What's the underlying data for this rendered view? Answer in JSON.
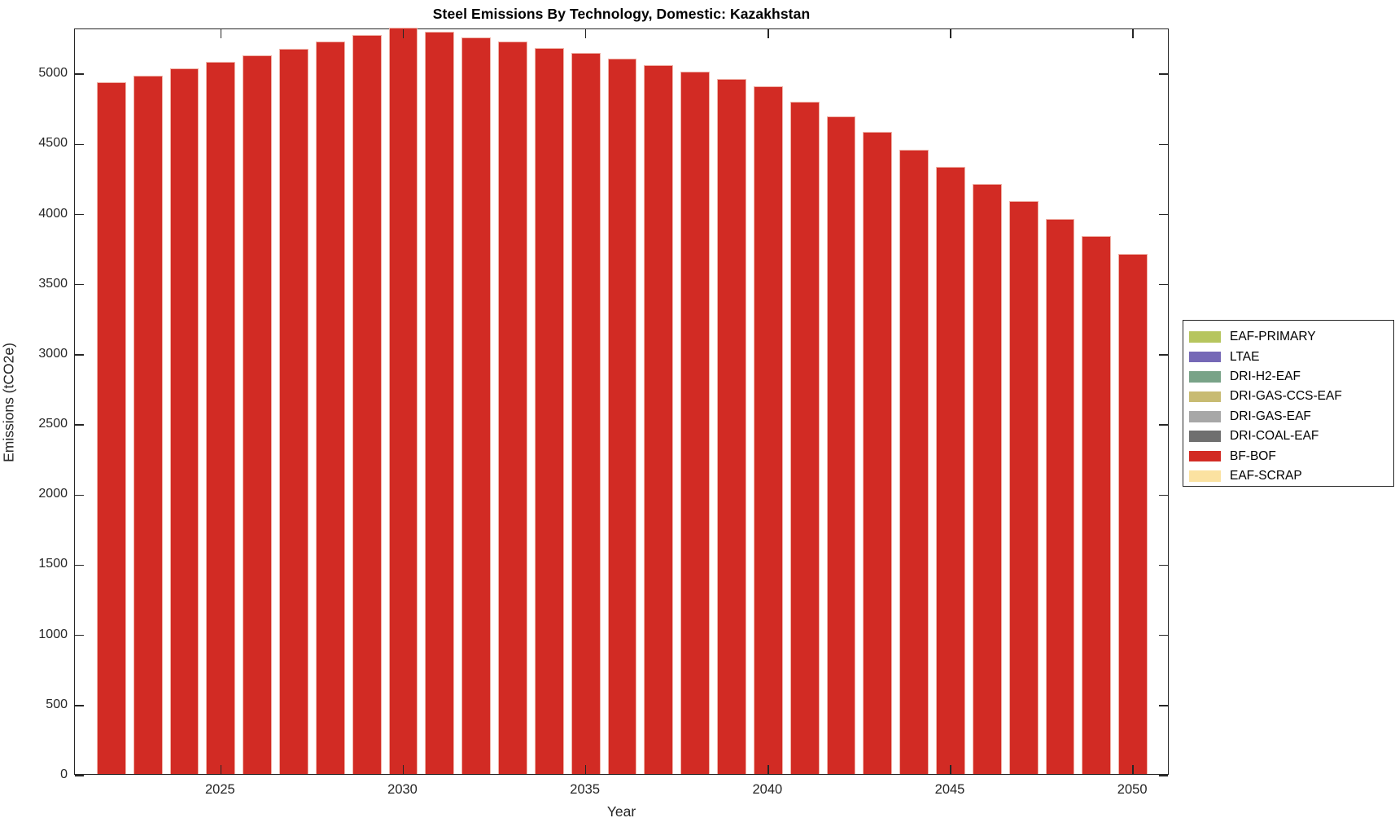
{
  "figure": {
    "title": "Steel Emissions By Technology, Domestic: Kazakhstan",
    "xlabel": "Year",
    "ylabel": "Emissions (tCO2e)"
  },
  "chart_data": {
    "type": "bar",
    "title": "Steel Emissions By Technology, Domestic: Kazakhstan",
    "xlabel": "Year",
    "ylabel": "Emissions (tCO2e)",
    "x": [
      2022,
      2023,
      2024,
      2025,
      2026,
      2027,
      2028,
      2029,
      2030,
      2031,
      2032,
      2033,
      2034,
      2035,
      2036,
      2037,
      2038,
      2039,
      2040,
      2041,
      2042,
      2043,
      2044,
      2045,
      2046,
      2047,
      2048,
      2049,
      2050
    ],
    "series": [
      {
        "name": "BF-BOF",
        "color": "#d22b24",
        "values": [
          4930,
          4980,
          5030,
          5075,
          5125,
          5170,
          5220,
          5270,
          5320,
          5290,
          5250,
          5220,
          5175,
          5140,
          5100,
          5055,
          5005,
          4955,
          4905,
          4795,
          4685,
          4575,
          4450,
          4330,
          4205,
          4085,
          3955,
          3835,
          3710
        ]
      }
    ],
    "stacked": true,
    "xlim": [
      2021,
      2051
    ],
    "ylim": [
      0,
      5320
    ],
    "xticks": [
      2025,
      2030,
      2035,
      2040,
      2045,
      2050
    ],
    "yticks": [
      0,
      500,
      1000,
      1500,
      2000,
      2500,
      3000,
      3500,
      4000,
      4500,
      5000
    ],
    "grid": false,
    "bar_width_fraction": 0.8,
    "legend_position": "right-outside",
    "legend_entries": [
      {
        "label": "EAF-PRIMARY",
        "color": "#b6c55e"
      },
      {
        "label": "LTAE",
        "color": "#7568b6"
      },
      {
        "label": "DRI-H2-EAF",
        "color": "#79a388"
      },
      {
        "label": "DRI-GAS-CCS-EAF",
        "color": "#c8bb72"
      },
      {
        "label": "DRI-GAS-EAF",
        "color": "#a7a7a7"
      },
      {
        "label": "DRI-COAL-EAF",
        "color": "#6f6f6f"
      },
      {
        "label": "BF-BOF",
        "color": "#d22b24"
      },
      {
        "label": "EAF-SCRAP",
        "color": "#fbe2a1"
      }
    ]
  }
}
